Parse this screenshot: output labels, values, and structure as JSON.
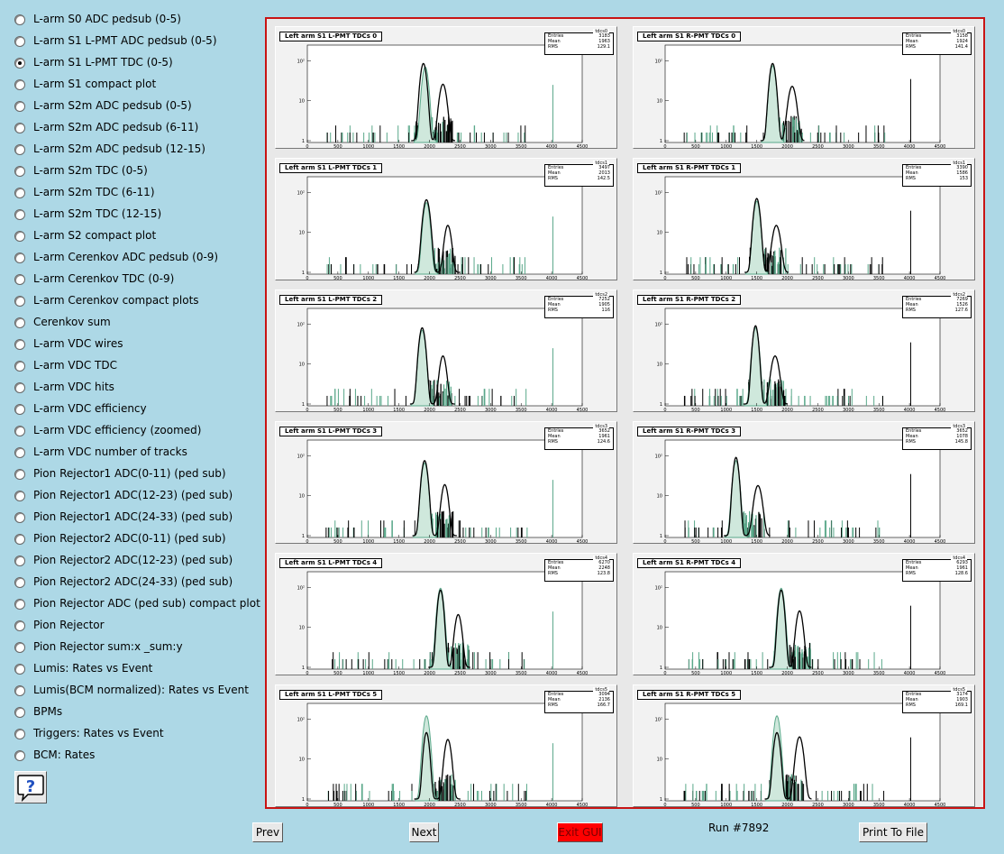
{
  "sidebar": {
    "items": [
      {
        "label": "L-arm S0 ADC pedsub (0-5)",
        "checked": false
      },
      {
        "label": "L-arm S1 L-PMT ADC pedsub (0-5)",
        "checked": false
      },
      {
        "label": "L-arm S1 L-PMT TDC (0-5)",
        "checked": true
      },
      {
        "label": "L-arm S1 compact plot",
        "checked": false
      },
      {
        "label": "L-arm S2m ADC pedsub (0-5)",
        "checked": false
      },
      {
        "label": "L-arm S2m ADC pedsub (6-11)",
        "checked": false
      },
      {
        "label": "L-arm S2m ADC pedsub (12-15)",
        "checked": false
      },
      {
        "label": "L-arm S2m TDC (0-5)",
        "checked": false
      },
      {
        "label": "L-arm S2m TDC (6-11)",
        "checked": false
      },
      {
        "label": "L-arm S2m TDC (12-15)",
        "checked": false
      },
      {
        "label": "L-arm S2 compact plot",
        "checked": false
      },
      {
        "label": "L-arm Cerenkov ADC pedsub (0-9)",
        "checked": false
      },
      {
        "label": "L-arm Cerenkov TDC (0-9)",
        "checked": false
      },
      {
        "label": "L-arm Cerenkov compact plots",
        "checked": false
      },
      {
        "label": "Cerenkov sum",
        "checked": false
      },
      {
        "label": "L-arm VDC wires",
        "checked": false
      },
      {
        "label": "L-arm VDC TDC",
        "checked": false
      },
      {
        "label": "L-arm VDC hits",
        "checked": false
      },
      {
        "label": "L-arm VDC efficiency",
        "checked": false
      },
      {
        "label": "L-arm VDC efficiency (zoomed)",
        "checked": false
      },
      {
        "label": "L-arm VDC number of tracks",
        "checked": false
      },
      {
        "label": "Pion Rejector1 ADC(0-11) (ped sub)",
        "checked": false
      },
      {
        "label": "Pion Rejector1 ADC(12-23) (ped sub)",
        "checked": false
      },
      {
        "label": "Pion Rejector1 ADC(24-33) (ped sub)",
        "checked": false
      },
      {
        "label": "Pion Rejector2 ADC(0-11) (ped sub)",
        "checked": false
      },
      {
        "label": "Pion Rejector2 ADC(12-23) (ped sub)",
        "checked": false
      },
      {
        "label": "Pion Rejector2 ADC(24-33) (ped sub)",
        "checked": false
      },
      {
        "label": "Pion Rejector ADC (ped sub) compact plot",
        "checked": false
      },
      {
        "label": "Pion Rejector",
        "checked": false
      },
      {
        "label": "Pion Rejector sum:x _sum:y",
        "checked": false
      },
      {
        "label": "Lumis: Rates vs Event",
        "checked": false
      },
      {
        "label": "Lumis(BCM normalized): Rates vs Event",
        "checked": false
      },
      {
        "label": "BPMs",
        "checked": false
      },
      {
        "label": "Triggers: Rates vs Event",
        "checked": false
      },
      {
        "label": "BCM: Rates",
        "checked": false
      }
    ],
    "help_icon": "question-balloon-icon"
  },
  "colors": {
    "background": "#add8e6",
    "panel_border": "#c81414",
    "exit_button": "#ff0000",
    "overlay_histogram": "#5aa88a",
    "primary_histogram": "#000000"
  },
  "pads": [
    {
      "title": "Left arm S1 L-PMT TDCs 0",
      "stats": {
        "name": "tdcs0",
        "entries": "3183",
        "mean": "1963",
        "rms": "129.1"
      }
    },
    {
      "title": "Left arm S1 R-PMT TDCs 0",
      "stats": {
        "name": "tdcs0",
        "entries": "3158",
        "mean": "1924",
        "rms": "141.4"
      }
    },
    {
      "title": "Left arm S1 L-PMT TDCs 1",
      "stats": {
        "name": "tdcs1",
        "entries": "3497",
        "mean": "2013",
        "rms": "142.5"
      }
    },
    {
      "title": "Left arm S1 R-PMT TDCs 1",
      "stats": {
        "name": "tdcs1",
        "entries": "3390",
        "mean": "1586",
        "rms": "153"
      }
    },
    {
      "title": "Left arm S1 L-PMT TDCs 2",
      "stats": {
        "name": "tdcs2",
        "entries": "7252",
        "mean": "1905",
        "rms": "116"
      }
    },
    {
      "title": "Left arm S1 R-PMT TDCs 2",
      "stats": {
        "name": "tdcs2",
        "entries": "7269",
        "mean": "1526",
        "rms": "127.6"
      }
    },
    {
      "title": "Left arm S1 L-PMT TDCs 3",
      "stats": {
        "name": "tdcs3",
        "entries": "3652",
        "mean": "1961",
        "rms": "124.6"
      }
    },
    {
      "title": "Left arm S1 R-PMT TDCs 3",
      "stats": {
        "name": "tdcs3",
        "entries": "3652",
        "mean": "1078",
        "rms": "145.8"
      }
    },
    {
      "title": "Left arm S1 L-PMT TDCs 4",
      "stats": {
        "name": "tdcs4",
        "entries": "6270",
        "mean": "2248",
        "rms": "123.8"
      }
    },
    {
      "title": "Left arm S1 R-PMT TDCs 4",
      "stats": {
        "name": "tdcs4",
        "entries": "6293",
        "mean": "1961",
        "rms": "128.6"
      }
    },
    {
      "title": "Left arm S1 L-PMT TDCs 5",
      "stats": {
        "name": "tdcs5",
        "entries": "3094",
        "mean": "2136",
        "rms": "166.7"
      }
    },
    {
      "title": "Left arm S1 R-PMT TDCs 5",
      "stats": {
        "name": "tdcs5",
        "entries": "3174",
        "mean": "1903",
        "rms": "169.1"
      }
    }
  ],
  "chart_data": {
    "type": "bar",
    "x_ticks": [
      "0",
      "500",
      "1000",
      "1500",
      "2000",
      "2500",
      "3000",
      "3500",
      "4000",
      "4500"
    ],
    "y_ticks": [
      "1",
      "10",
      "10²"
    ],
    "xlim": [
      0,
      4500
    ],
    "y_scale": "log",
    "grid": false,
    "panels": [
      {
        "peaks": [
          {
            "x": 1900,
            "y": 85,
            "w": 55
          },
          {
            "x": 2220,
            "y": 25,
            "w": 65
          }
        ],
        "overlay": {
          "x": 1930,
          "y": 70
        }
      },
      {
        "peaks": [
          {
            "x": 1760,
            "y": 85,
            "w": 55
          },
          {
            "x": 2080,
            "y": 22,
            "w": 70
          }
        ],
        "overlay": {
          "x": 1760,
          "y": 75
        }
      },
      {
        "peaks": [
          {
            "x": 1950,
            "y": 65,
            "w": 60
          },
          {
            "x": 2300,
            "y": 14,
            "w": 60
          }
        ],
        "overlay": {
          "x": 1950,
          "y": 55
        }
      },
      {
        "peaks": [
          {
            "x": 1500,
            "y": 70,
            "w": 55
          },
          {
            "x": 1820,
            "y": 14,
            "w": 70
          }
        ],
        "overlay": {
          "x": 1500,
          "y": 60
        }
      },
      {
        "peaks": [
          {
            "x": 1880,
            "y": 80,
            "w": 55
          },
          {
            "x": 2220,
            "y": 15,
            "w": 60
          }
        ],
        "overlay": {
          "x": 1880,
          "y": 70
        }
      },
      {
        "peaks": [
          {
            "x": 1480,
            "y": 90,
            "w": 50
          },
          {
            "x": 1800,
            "y": 15,
            "w": 70
          }
        ],
        "overlay": {
          "x": 1480,
          "y": 80
        }
      },
      {
        "peaks": [
          {
            "x": 1920,
            "y": 75,
            "w": 55
          },
          {
            "x": 2250,
            "y": 18,
            "w": 60
          }
        ],
        "overlay": {
          "x": 1920,
          "y": 65
        }
      },
      {
        "peaks": [
          {
            "x": 1160,
            "y": 90,
            "w": 50
          },
          {
            "x": 1520,
            "y": 17,
            "w": 70
          }
        ],
        "overlay": {
          "x": 1160,
          "y": 75
        }
      },
      {
        "peaks": [
          {
            "x": 2180,
            "y": 85,
            "w": 50
          },
          {
            "x": 2470,
            "y": 20,
            "w": 60
          }
        ],
        "overlay": {
          "x": 2180,
          "y": 95
        }
      },
      {
        "peaks": [
          {
            "x": 1900,
            "y": 85,
            "w": 50
          },
          {
            "x": 2200,
            "y": 25,
            "w": 60
          }
        ],
        "overlay": {
          "x": 1900,
          "y": 95
        }
      },
      {
        "peaks": [
          {
            "x": 1950,
            "y": 45,
            "w": 50
          },
          {
            "x": 2300,
            "y": 30,
            "w": 60
          }
        ],
        "overlay": {
          "x": 1950,
          "y": 120
        }
      },
      {
        "peaks": [
          {
            "x": 1830,
            "y": 45,
            "w": 55
          },
          {
            "x": 2200,
            "y": 35,
            "w": 65
          }
        ],
        "overlay": {
          "x": 1830,
          "y": 120
        }
      }
    ]
  },
  "buttons": {
    "prev": "Prev",
    "next": "Next",
    "exit": "Exit GUI",
    "print": "Print To File"
  },
  "status": {
    "run_label": "Run #7892"
  }
}
